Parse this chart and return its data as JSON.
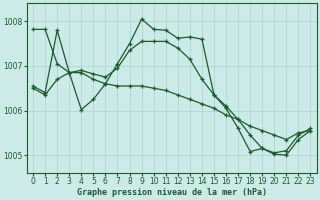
{
  "background_color": "#cceae7",
  "grid_color": "#aad4d0",
  "line_color": "#1a5c2a",
  "title": "Graphe pression niveau de la mer (hPa)",
  "xlim": [
    -0.5,
    23.5
  ],
  "ylim": [
    1004.6,
    1008.4
  ],
  "yticks": [
    1005,
    1006,
    1007,
    1008
  ],
  "xticks": [
    0,
    1,
    2,
    3,
    4,
    5,
    6,
    7,
    8,
    9,
    10,
    11,
    12,
    13,
    14,
    15,
    16,
    17,
    18,
    19,
    20,
    21,
    22,
    23
  ],
  "line1_x": [
    0,
    1,
    2,
    3,
    4,
    5,
    6,
    7,
    8,
    9,
    10,
    11,
    12,
    13,
    14,
    15,
    16,
    17,
    18,
    19,
    20,
    21,
    22,
    23
  ],
  "line1_y": [
    1006.55,
    1006.4,
    1007.8,
    1006.85,
    1006.02,
    1006.25,
    1006.6,
    1007.05,
    1007.5,
    1008.05,
    1007.82,
    1007.8,
    1007.62,
    1007.65,
    1007.6,
    1006.35,
    1006.1,
    1005.8,
    1005.45,
    1005.15,
    1005.05,
    1005.1,
    1005.45,
    1005.6
  ],
  "line2_x": [
    0,
    1,
    2,
    3,
    4,
    5,
    6,
    7,
    8,
    9,
    10,
    11,
    12,
    13,
    14,
    15,
    16,
    17,
    18,
    19,
    20,
    21,
    22,
    23
  ],
  "line2_y": [
    1007.82,
    1007.82,
    1007.05,
    1006.85,
    1006.85,
    1006.7,
    1006.6,
    1006.55,
    1006.55,
    1006.55,
    1006.5,
    1006.45,
    1006.35,
    1006.25,
    1006.15,
    1006.05,
    1005.9,
    1005.8,
    1005.65,
    1005.55,
    1005.45,
    1005.35,
    1005.5,
    1005.55
  ],
  "line3_x": [
    0,
    1,
    2,
    3,
    4,
    5,
    6,
    7,
    8,
    9,
    10,
    11,
    12,
    13,
    14,
    15,
    16,
    17,
    18,
    19,
    20,
    21,
    22,
    23
  ],
  "line3_y": [
    1006.5,
    1006.35,
    1006.7,
    1006.85,
    1006.9,
    1006.82,
    1006.75,
    1006.95,
    1007.35,
    1007.55,
    1007.55,
    1007.55,
    1007.4,
    1007.15,
    1006.7,
    1006.35,
    1006.05,
    1005.6,
    1005.08,
    1005.15,
    1005.02,
    1005.0,
    1005.35,
    1005.55
  ]
}
